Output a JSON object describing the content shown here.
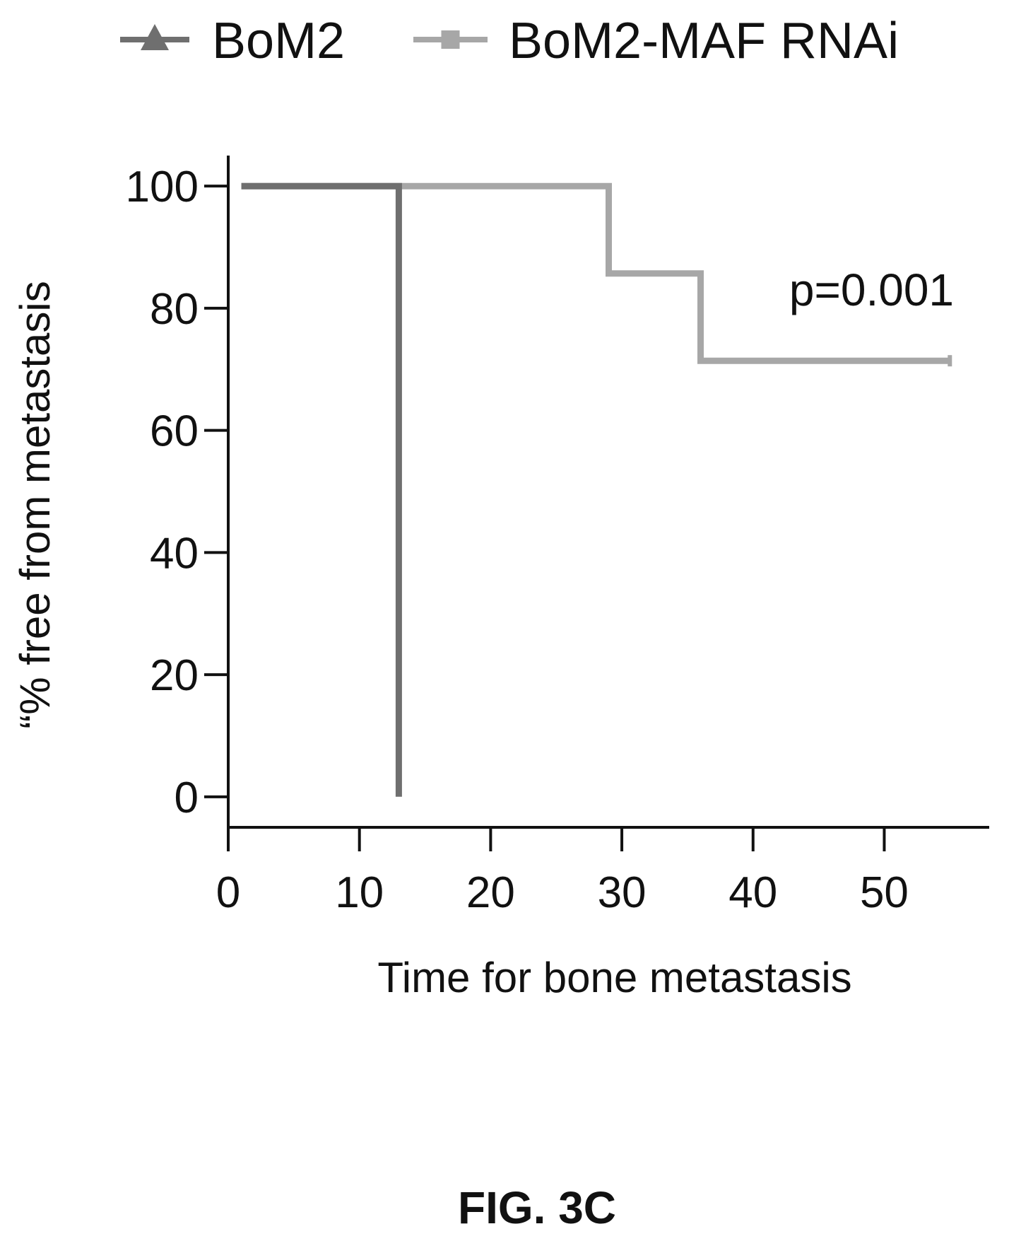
{
  "figure_label": "FIG. 3C",
  "chart_data": {
    "type": "line",
    "subtype": "kaplan-meier step",
    "xlabel": "Time for bone metastasis",
    "ylabel": "“% free from metastasis",
    "xlim": [
      0,
      58
    ],
    "ylim": [
      -5,
      105
    ],
    "xticks": [
      0,
      10,
      20,
      30,
      40,
      50
    ],
    "yticks": [
      0,
      20,
      40,
      60,
      80,
      100
    ],
    "grid": false,
    "legend_position": "top",
    "annotation": "p=0.001",
    "series": [
      {
        "name": "BoM2",
        "marker": "triangle",
        "color": "#6f6f6f",
        "x": [
          1,
          13,
          13
        ],
        "y": [
          100,
          100,
          0
        ]
      },
      {
        "name": "BoM2-MAF RNAi",
        "marker": "square",
        "color": "#a7a7a7",
        "x": [
          1,
          29,
          29,
          36,
          36,
          55
        ],
        "y": [
          100,
          100,
          85.7,
          85.7,
          71.4,
          71.4
        ]
      }
    ]
  }
}
